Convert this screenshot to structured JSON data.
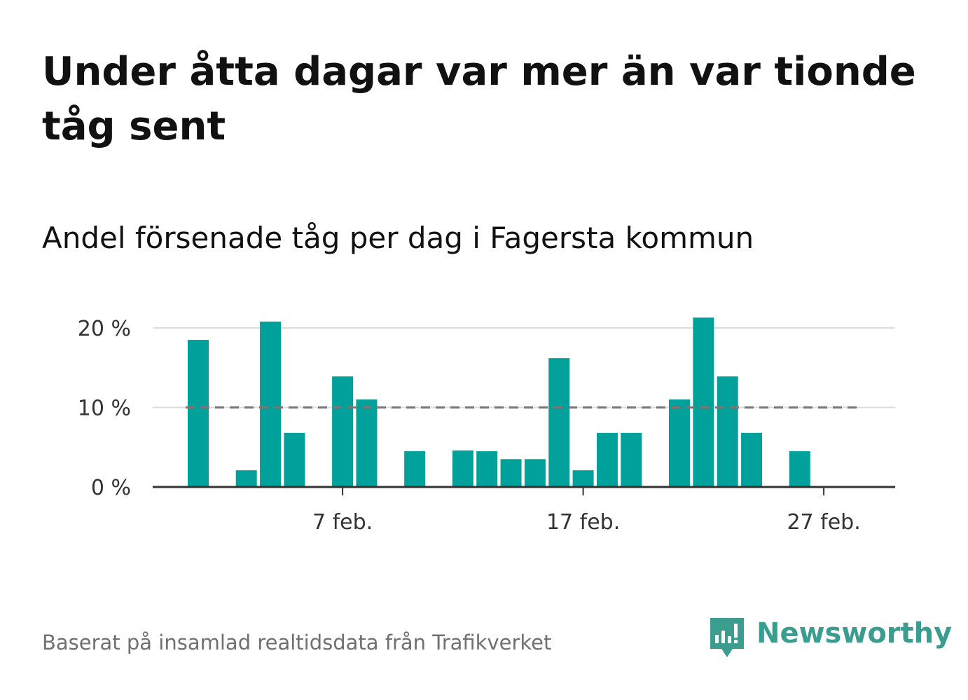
{
  "title": "Under åtta dagar var mer än var tionde tåg sent",
  "subtitle": "Andel försenade tåg per dag i Fagersta kommun",
  "source": "Baserat på insamlad realtidsdata från Trafikverket",
  "logo": {
    "text": "Newsworthy",
    "icon": "newsworthy-chart-bubble-icon"
  },
  "colors": {
    "bar": "#00a19a",
    "reference_line": "#777777",
    "grid": "#dddddd",
    "axis": "#333333",
    "logo": "#3a9d8f"
  },
  "chart_data": {
    "type": "bar",
    "x_tick_labels": [
      "7 feb.",
      "17 feb.",
      "27 feb."
    ],
    "y_tick_labels": [
      "0 %",
      "10 %",
      "20 %"
    ],
    "ylim": [
      0,
      20
    ],
    "y_unit": "%",
    "grid": "horizontal",
    "reference_line": 10,
    "bars": [
      {
        "day": 1,
        "value": 18.5
      },
      {
        "day": 2,
        "value": 0
      },
      {
        "day": 3,
        "value": 2.1
      },
      {
        "day": 4,
        "value": 20.8
      },
      {
        "day": 5,
        "value": 6.8
      },
      {
        "day": 6,
        "value": 0
      },
      {
        "day": 7,
        "value": 13.9
      },
      {
        "day": 8,
        "value": 11.0
      },
      {
        "day": 9,
        "value": 0
      },
      {
        "day": 10,
        "value": 4.5
      },
      {
        "day": 11,
        "value": 0
      },
      {
        "day": 12,
        "value": 4.6
      },
      {
        "day": 13,
        "value": 4.5
      },
      {
        "day": 14,
        "value": 3.5
      },
      {
        "day": 15,
        "value": 3.5
      },
      {
        "day": 16,
        "value": 16.2
      },
      {
        "day": 17,
        "value": 2.1
      },
      {
        "day": 18,
        "value": 6.8
      },
      {
        "day": 19,
        "value": 6.8
      },
      {
        "day": 20,
        "value": 0
      },
      {
        "day": 21,
        "value": 11.0
      },
      {
        "day": 22,
        "value": 21.3
      },
      {
        "day": 23,
        "value": 13.9
      },
      {
        "day": 24,
        "value": 6.8
      },
      {
        "day": 25,
        "value": 0
      },
      {
        "day": 26,
        "value": 4.5
      },
      {
        "day": 27,
        "value": 0
      },
      {
        "day": 28,
        "value": 0
      }
    ]
  }
}
